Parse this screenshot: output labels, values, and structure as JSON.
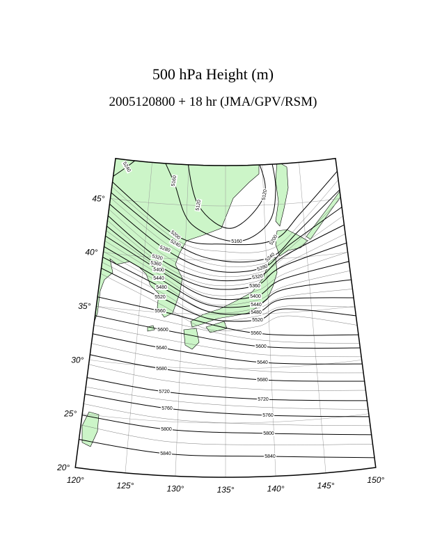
{
  "title": "500 hPa Height (m)",
  "subtitle": "2005120800 + 18 hr (JMA/GPV/RSM)",
  "map": {
    "lonlim": [
      120,
      150
    ],
    "latlim": [
      20,
      48.72
    ],
    "lonticks": [
      {
        "value": 120,
        "label": "120°"
      },
      {
        "value": 125,
        "label": "125°"
      },
      {
        "value": 130,
        "label": "130°"
      },
      {
        "value": 135,
        "label": "135°"
      },
      {
        "value": 140,
        "label": "140°"
      },
      {
        "value": 145,
        "label": "145°"
      },
      {
        "value": 150,
        "label": "150°"
      }
    ],
    "latticks": [
      {
        "value": 20,
        "label": "20°"
      },
      {
        "value": 25,
        "label": "25°"
      },
      {
        "value": 30,
        "label": "30°"
      },
      {
        "value": 35,
        "label": "35°"
      },
      {
        "value": 40,
        "label": "40°"
      },
      {
        "value": 45,
        "label": "45°"
      }
    ],
    "contour_labels": [
      5240,
      5160,
      5120,
      5120,
      5160,
      5200,
      5240,
      5280,
      5320,
      5360,
      5400,
      5440,
      5480,
      5520,
      5560,
      5600,
      5640,
      5680,
      5720,
      5760,
      5800,
      5840,
      5200,
      5240,
      5280,
      5320,
      5360,
      5400,
      5440,
      5480,
      5520,
      5560,
      5600,
      5640,
      5680,
      5720,
      5760,
      5800,
      5840
    ]
  }
}
